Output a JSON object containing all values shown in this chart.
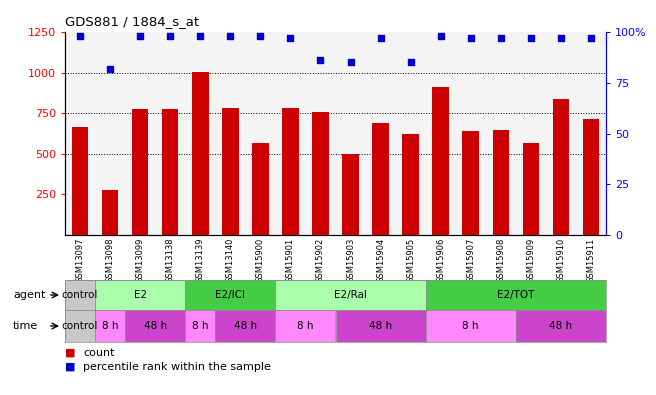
{
  "title": "GDS881 / 1884_s_at",
  "samples": [
    "GSM13097",
    "GSM13098",
    "GSM13099",
    "GSM13138",
    "GSM13139",
    "GSM13140",
    "GSM15900",
    "GSM15901",
    "GSM15902",
    "GSM15903",
    "GSM15904",
    "GSM15905",
    "GSM15906",
    "GSM15907",
    "GSM15908",
    "GSM15909",
    "GSM15910",
    "GSM15911"
  ],
  "counts": [
    665,
    275,
    775,
    775,
    1005,
    780,
    565,
    780,
    760,
    500,
    690,
    625,
    910,
    640,
    645,
    565,
    835,
    715
  ],
  "percentiles": [
    98,
    82,
    98,
    98,
    98,
    98,
    98,
    97,
    86,
    85,
    97,
    85,
    98,
    97,
    97,
    97,
    97,
    97
  ],
  "bar_color": "#cc0000",
  "dot_color": "#0000cc",
  "ylim_left": [
    0,
    1250
  ],
  "ylim_right": [
    0,
    100
  ],
  "yticks_left": [
    250,
    500,
    750,
    1000,
    1250
  ],
  "yticks_right": [
    0,
    25,
    50,
    75,
    100
  ],
  "grid_lines": [
    500,
    750,
    1000
  ],
  "agent_groups": [
    {
      "label": "control",
      "start": 0,
      "end": 1,
      "color": "#c8c8c8"
    },
    {
      "label": "E2",
      "start": 1,
      "end": 4,
      "color": "#aaffaa"
    },
    {
      "label": "E2/ICI",
      "start": 4,
      "end": 7,
      "color": "#44cc44"
    },
    {
      "label": "E2/Ral",
      "start": 7,
      "end": 12,
      "color": "#aaffaa"
    },
    {
      "label": "E2/TOT",
      "start": 12,
      "end": 18,
      "color": "#44cc44"
    }
  ],
  "time_groups": [
    {
      "label": "control",
      "start": 0,
      "end": 1,
      "color": "#c8c8c8"
    },
    {
      "label": "8 h",
      "start": 1,
      "end": 2,
      "color": "#ff88ff"
    },
    {
      "label": "48 h",
      "start": 2,
      "end": 4,
      "color": "#cc44cc"
    },
    {
      "label": "8 h",
      "start": 4,
      "end": 5,
      "color": "#ff88ff"
    },
    {
      "label": "48 h",
      "start": 5,
      "end": 7,
      "color": "#cc44cc"
    },
    {
      "label": "8 h",
      "start": 7,
      "end": 9,
      "color": "#ff88ff"
    },
    {
      "label": "48 h",
      "start": 9,
      "end": 12,
      "color": "#cc44cc"
    },
    {
      "label": "8 h",
      "start": 12,
      "end": 15,
      "color": "#ff88ff"
    },
    {
      "label": "48 h",
      "start": 15,
      "end": 18,
      "color": "#cc44cc"
    }
  ]
}
